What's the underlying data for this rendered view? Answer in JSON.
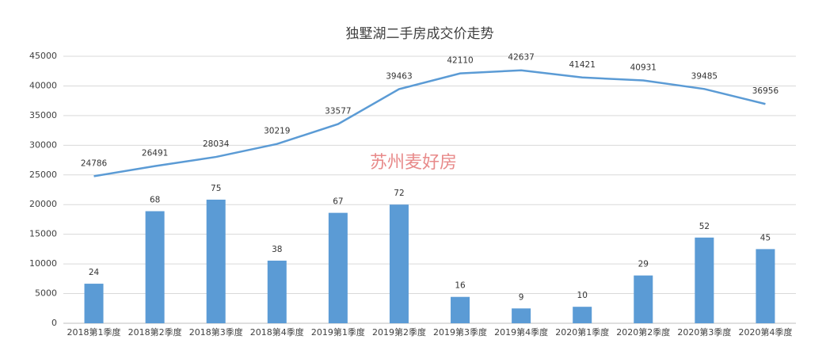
{
  "chart_data": {
    "type": "combo",
    "title": "独墅湖二手房成交价走势",
    "annotation": "苏州麦好房",
    "categories": [
      "2018第1季度",
      "2018第2季度",
      "2018第3季度",
      "2018第4季度",
      "2019第1季度",
      "2019第2季度",
      "2019第3季度",
      "2019第4季度",
      "2020第1季度",
      "2020第2季度",
      "2020第3季度",
      "2020第4季度"
    ],
    "series": [
      {
        "type": "bar",
        "color": "#5b9bd5",
        "axis": "y2",
        "values": [
          24,
          68,
          75,
          38,
          67,
          72,
          16,
          9,
          10,
          29,
          52,
          45
        ]
      },
      {
        "type": "line",
        "color": "#5b9bd5",
        "values": [
          24786,
          26491,
          28034,
          30219,
          33577,
          39463,
          42110,
          42637,
          41421,
          40931,
          39485,
          36956
        ]
      }
    ],
    "ylim": [
      0,
      45000
    ],
    "yticks": [
      0,
      5000,
      10000,
      15000,
      20000,
      25000,
      30000,
      35000,
      40000,
      45000
    ],
    "y2lim": [
      0,
      162
    ],
    "grid": true
  }
}
